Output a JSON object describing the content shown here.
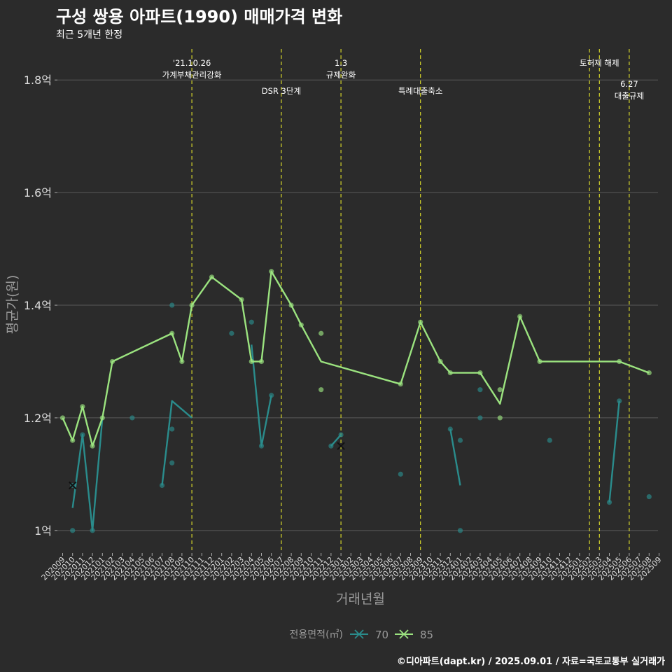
{
  "header": {
    "title": "구성 쌍용 아파트(1990) 매매가격 변화",
    "subtitle": "최근 5개년 한정"
  },
  "footer": {
    "caption": "©디아파트(dapt.kr) / 2025.09.01 / 자료=국토교통부 실거래가"
  },
  "colors": {
    "background": "#2b2b2b",
    "grid": "#5a5a5a",
    "series_70": "#2a8c8c",
    "series_85": "#9be37f",
    "event_line": "#d6d62a",
    "axis_text": "#dddddd",
    "axis_title": "#9a9a9a"
  },
  "chart_data": {
    "type": "line",
    "xlabel": "거래년월",
    "ylabel": "평균가(원)",
    "ylim": [
      0.96,
      1.855
    ],
    "y_ticks": [
      {
        "value": 1.0,
        "label": "1억"
      },
      {
        "value": 1.2,
        "label": "1.2억"
      },
      {
        "value": 1.4,
        "label": "1.4억"
      },
      {
        "value": 1.6,
        "label": "1.6억"
      },
      {
        "value": 1.8,
        "label": "1.8억"
      }
    ],
    "x_categories": [
      "202009",
      "202010",
      "202011",
      "202012",
      "202101",
      "202102",
      "202103",
      "202104",
      "202105",
      "202106",
      "202107",
      "202108",
      "202109",
      "202110",
      "202111",
      "202112",
      "202201",
      "202202",
      "202203",
      "202204",
      "202205",
      "202206",
      "202207",
      "202208",
      "202209",
      "202210",
      "202211",
      "202212",
      "202301",
      "202302",
      "202303",
      "202304",
      "202305",
      "202306",
      "202307",
      "202308",
      "202309",
      "202310",
      "202311",
      "202312",
      "202401",
      "202402",
      "202403",
      "202404",
      "202405",
      "202406",
      "202407",
      "202408",
      "202409",
      "202410",
      "202411",
      "202412",
      "202501",
      "202502",
      "202503",
      "202504",
      "202505",
      "202506",
      "202507",
      "202508",
      "202509"
    ],
    "legend": {
      "title": "전용면적(㎡)",
      "position": "bottom"
    },
    "series": [
      {
        "name": "70",
        "color": "#2a8c8c",
        "line": [
          {
            "x": "202010",
            "y": 1.04
          },
          {
            "x": "202011",
            "y": 1.17
          },
          {
            "x": "202012",
            "y": 1.0
          },
          {
            "x": "202101",
            "y": 1.2
          },
          null,
          {
            "x": "202107",
            "y": 1.08
          },
          {
            "x": "202108",
            "y": 1.23
          },
          {
            "x": "202110",
            "y": 1.2
          },
          null,
          {
            "x": "202204",
            "y": 1.33
          },
          {
            "x": "202205",
            "y": 1.15
          },
          {
            "x": "202206",
            "y": 1.24
          },
          null,
          {
            "x": "202212",
            "y": 1.15
          },
          {
            "x": "202301",
            "y": 1.17
          },
          null,
          {
            "x": "202312",
            "y": 1.18
          },
          {
            "x": "202401",
            "y": 1.08
          },
          null,
          {
            "x": "202504",
            "y": 1.05
          },
          {
            "x": "202505",
            "y": 1.23
          }
        ],
        "points": [
          {
            "x": "202010",
            "y": 1.08
          },
          {
            "x": "202010",
            "y": 1.0
          },
          {
            "x": "202011",
            "y": 1.17
          },
          {
            "x": "202012",
            "y": 1.0
          },
          {
            "x": "202104",
            "y": 1.2
          },
          {
            "x": "202107",
            "y": 1.08
          },
          {
            "x": "202108",
            "y": 1.4
          },
          {
            "x": "202108",
            "y": 1.18
          },
          {
            "x": "202108",
            "y": 1.12
          },
          {
            "x": "202202",
            "y": 1.35
          },
          {
            "x": "202204",
            "y": 1.37
          },
          {
            "x": "202205",
            "y": 1.15
          },
          {
            "x": "202206",
            "y": 1.24
          },
          {
            "x": "202212",
            "y": 1.15
          },
          {
            "x": "202301",
            "y": 1.17
          },
          {
            "x": "202307",
            "y": 1.1
          },
          {
            "x": "202312",
            "y": 1.18
          },
          {
            "x": "202401",
            "y": 1.16
          },
          {
            "x": "202401",
            "y": 1.0
          },
          {
            "x": "202403",
            "y": 1.25
          },
          {
            "x": "202403",
            "y": 1.2
          },
          {
            "x": "202410",
            "y": 1.16
          },
          {
            "x": "202504",
            "y": 1.05
          },
          {
            "x": "202505",
            "y": 1.23
          },
          {
            "x": "202508",
            "y": 1.06
          }
        ],
        "markers": [
          {
            "x": "202010",
            "y": 1.08
          },
          {
            "x": "202301",
            "y": 1.15
          }
        ]
      },
      {
        "name": "85",
        "color": "#9be37f",
        "line": [
          {
            "x": "202009",
            "y": 1.2
          },
          {
            "x": "202010",
            "y": 1.16
          },
          {
            "x": "202011",
            "y": 1.22
          },
          {
            "x": "202012",
            "y": 1.15
          },
          {
            "x": "202101",
            "y": 1.2
          },
          {
            "x": "202102",
            "y": 1.3
          },
          {
            "x": "202108",
            "y": 1.35
          },
          {
            "x": "202109",
            "y": 1.3
          },
          {
            "x": "202110",
            "y": 1.4
          },
          {
            "x": "202112",
            "y": 1.45
          },
          {
            "x": "202203",
            "y": 1.41
          },
          {
            "x": "202204",
            "y": 1.3
          },
          {
            "x": "202205",
            "y": 1.3
          },
          {
            "x": "202206",
            "y": 1.46
          },
          {
            "x": "202208",
            "y": 1.4
          },
          {
            "x": "202209",
            "y": 1.365
          },
          {
            "x": "202211",
            "y": 1.3
          },
          {
            "x": "202307",
            "y": 1.26
          },
          {
            "x": "202309",
            "y": 1.37
          },
          {
            "x": "202311",
            "y": 1.3
          },
          {
            "x": "202312",
            "y": 1.28
          },
          {
            "x": "202403",
            "y": 1.28
          },
          {
            "x": "202405",
            "y": 1.225
          },
          {
            "x": "202407",
            "y": 1.38
          },
          {
            "x": "202409",
            "y": 1.3
          },
          {
            "x": "202505",
            "y": 1.3
          },
          {
            "x": "202508",
            "y": 1.28
          }
        ],
        "points": [
          {
            "x": "202009",
            "y": 1.2
          },
          {
            "x": "202010",
            "y": 1.16
          },
          {
            "x": "202011",
            "y": 1.22
          },
          {
            "x": "202012",
            "y": 1.15
          },
          {
            "x": "202101",
            "y": 1.2
          },
          {
            "x": "202102",
            "y": 1.3
          },
          {
            "x": "202108",
            "y": 1.35
          },
          {
            "x": "202109",
            "y": 1.3
          },
          {
            "x": "202110",
            "y": 1.4
          },
          {
            "x": "202112",
            "y": 1.45
          },
          {
            "x": "202203",
            "y": 1.41
          },
          {
            "x": "202204",
            "y": 1.3
          },
          {
            "x": "202205",
            "y": 1.3
          },
          {
            "x": "202206",
            "y": 1.46
          },
          {
            "x": "202208",
            "y": 1.4
          },
          {
            "x": "202209",
            "y": 1.365
          },
          {
            "x": "202211",
            "y": 1.35
          },
          {
            "x": "202211",
            "y": 1.25
          },
          {
            "x": "202307",
            "y": 1.26
          },
          {
            "x": "202309",
            "y": 1.37
          },
          {
            "x": "202311",
            "y": 1.3
          },
          {
            "x": "202312",
            "y": 1.28
          },
          {
            "x": "202403",
            "y": 1.28
          },
          {
            "x": "202405",
            "y": 1.25
          },
          {
            "x": "202405",
            "y": 1.2
          },
          {
            "x": "202407",
            "y": 1.38
          },
          {
            "x": "202409",
            "y": 1.3
          },
          {
            "x": "202505",
            "y": 1.3
          },
          {
            "x": "202508",
            "y": 1.28
          }
        ],
        "markers": []
      }
    ],
    "events": [
      {
        "x": "202110",
        "lines": [
          "'21.10.26",
          "가계부채관리강화"
        ],
        "row": 0
      },
      {
        "x": "202207",
        "lines": [
          "DSR 3단계"
        ],
        "row": 1
      },
      {
        "x": "202301",
        "lines": [
          "1.3",
          "규제완화"
        ],
        "row": 0
      },
      {
        "x": "202309",
        "lines": [
          "특례대출축소"
        ],
        "row": 1
      },
      {
        "x": "202502",
        "lines": [],
        "row": 0
      },
      {
        "x": "202503",
        "lines": [
          "토허제 해제"
        ],
        "row": 0
      },
      {
        "x": "202506",
        "lines": [
          "6.27",
          "대출규제"
        ],
        "row": 2
      }
    ]
  }
}
